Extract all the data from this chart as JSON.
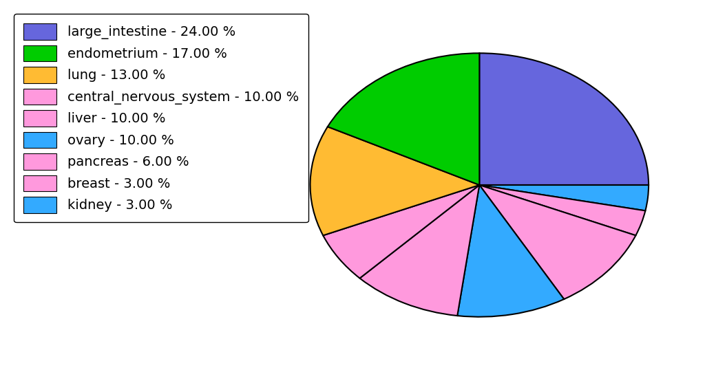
{
  "labels": [
    "large_intestine - 24.00 %",
    "endometrium - 17.00 %",
    "lung - 13.00 %",
    "central_nervous_system - 10.00 %",
    "liver - 10.00 %",
    "ovary - 10.00 %",
    "pancreas - 6.00 %",
    "breast - 3.00 %",
    "kidney - 3.00 %"
  ],
  "values": [
    24,
    17,
    13,
    10,
    10,
    10,
    6,
    3,
    3
  ],
  "pie_order_labels": [
    "large_intestine",
    "kidney",
    "breast",
    "liver",
    "ovary",
    "central_nervous_system",
    "pancreas",
    "lung",
    "endometrium"
  ],
  "pie_order_values": [
    24,
    3,
    3,
    10,
    10,
    10,
    6,
    13,
    17
  ],
  "pie_colors": [
    "#6666dd",
    "#33aaff",
    "#ff99dd",
    "#ff99dd",
    "#33aaff",
    "#ff99dd",
    "#ff99dd",
    "#ffbb33",
    "#00cc00"
  ],
  "legend_colors": [
    "#6666dd",
    "#00cc00",
    "#ffbb33",
    "#ff99dd",
    "#ff99dd",
    "#33aaff",
    "#ff99dd",
    "#ff99dd",
    "#33aaff"
  ],
  "background_color": "#ffffff",
  "legend_fontsize": 14,
  "figsize": [
    10.24,
    5.38
  ],
  "dpi": 100
}
